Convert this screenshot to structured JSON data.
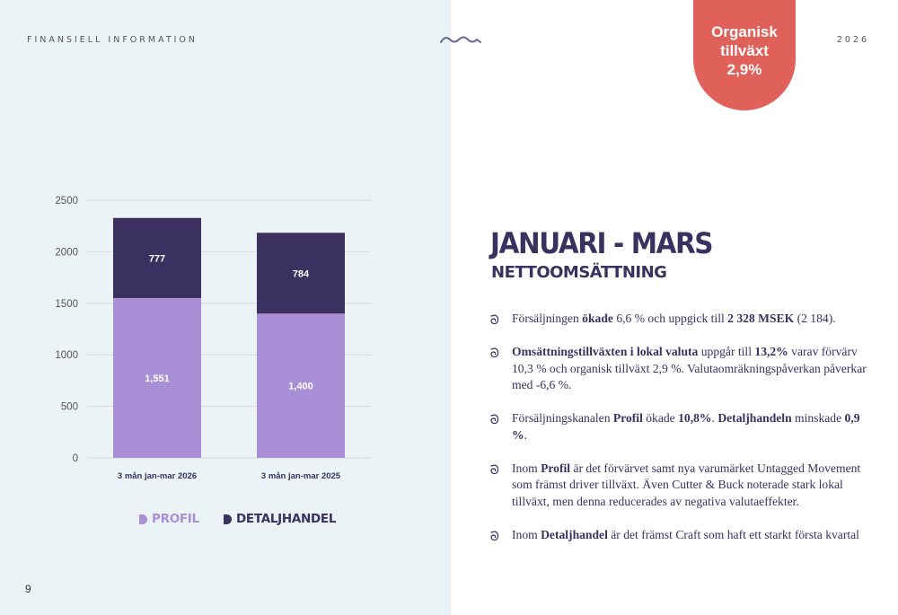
{
  "header": {
    "left_label": "FINANSIELL INFORMATION",
    "year": "2026"
  },
  "page_number": "9",
  "badge": {
    "line1": "Organisk",
    "line2": "tillväxt",
    "value": "2,9%",
    "color": "#e0605a"
  },
  "colors": {
    "profil": "#a88fd6",
    "detaljhandel": "#3a3160",
    "panel": "#ebf3f7"
  },
  "chart_data": {
    "type": "bar",
    "stacked": true,
    "categories": [
      "3 mån jan-mar 2026",
      "3 mån jan-mar 2025"
    ],
    "series": [
      {
        "name": "PROFIL",
        "values": [
          1551,
          1400
        ],
        "labels": [
          "1,551",
          "1,400"
        ]
      },
      {
        "name": "DETALJHANDEL",
        "values": [
          777,
          784
        ],
        "labels": [
          "777",
          "784"
        ]
      }
    ],
    "ylim": [
      0,
      2500
    ],
    "yticks": [
      0,
      500,
      1000,
      1500,
      2000,
      2500
    ],
    "grid": true,
    "legend_position": "bottom"
  },
  "title": "JANUARI - MARS",
  "subtitle": "NETTOOMSÄTTNING",
  "bullets": [
    [
      {
        "t": "Försäljningen ",
        "b": false
      },
      {
        "t": "ökade",
        "b": true
      },
      {
        "t": " 6,6 % och uppgick till ",
        "b": false
      },
      {
        "t": "2 328 MSEK",
        "b": true
      },
      {
        "t": " (2 184).",
        "b": false
      }
    ],
    [
      {
        "t": "Omsättningstillväxten i lokal valuta",
        "b": true
      },
      {
        "t": " uppgår till ",
        "b": false
      },
      {
        "t": "13,2%",
        "b": true
      },
      {
        "t": " varav förvärv 10,3 % och organisk tillväxt 2,9 %. Valutaomräkningspåverkan påverkar med -6,6 %.",
        "b": false
      }
    ],
    [
      {
        "t": "Försäljningskanalen ",
        "b": false
      },
      {
        "t": "Profil",
        "b": true
      },
      {
        "t": " ökade ",
        "b": false
      },
      {
        "t": "10,8%",
        "b": true
      },
      {
        "t": ". ",
        "b": false
      },
      {
        "t": "Detaljhandeln",
        "b": true
      },
      {
        "t": " minskade ",
        "b": false
      },
      {
        "t": "0,9 %",
        "b": true
      },
      {
        "t": ".",
        "b": false
      }
    ],
    [
      {
        "t": "Inom ",
        "b": false
      },
      {
        "t": "Profil",
        "b": true
      },
      {
        "t": " är det förvärvet samt nya varumärket Untagged Movement som främst driver tillväxt. Även Cutter & Buck noterade stark lokal tillväxt, men denna reducerades av negativa valutaeffekter.",
        "b": false
      }
    ],
    [
      {
        "t": "Inom ",
        "b": false
      },
      {
        "t": "Detaljhandel",
        "b": true
      },
      {
        "t": " är det främst Craft som haft ett starkt första kvartal",
        "b": false
      }
    ]
  ]
}
